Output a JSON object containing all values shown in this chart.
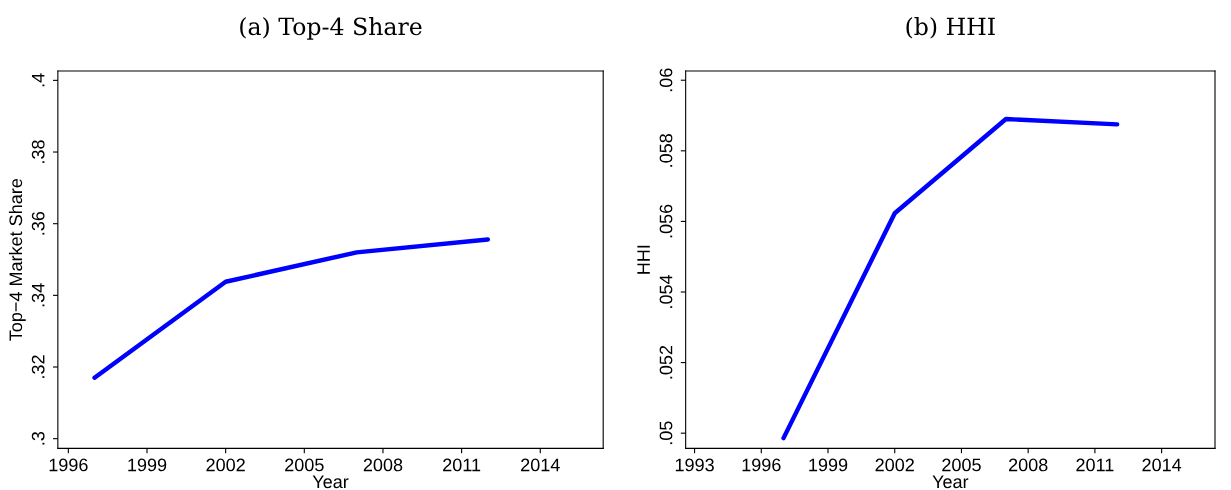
{
  "chart_data": [
    {
      "type": "line",
      "title": "(a) Top-4 Share",
      "xlabel": "Year",
      "ylabel": "Top−4 Market Share",
      "x": [
        1997,
        2002,
        2007,
        2012
      ],
      "series": [
        {
          "color": "#0000ff",
          "values": [
            0.317,
            0.3438,
            0.352,
            0.3556
          ]
        }
      ],
      "xlim": [
        1995.6,
        2016.4
      ],
      "xticks": [
        1996,
        1999,
        2002,
        2005,
        2008,
        2011,
        2014
      ],
      "ylim": [
        0.2973,
        0.4026
      ],
      "yticks": [
        {
          "value": 0.3,
          "label": ".3"
        },
        {
          "value": 0.32,
          "label": ".32"
        },
        {
          "value": 0.34,
          "label": ".34"
        },
        {
          "value": 0.36,
          "label": ".36"
        },
        {
          "value": 0.38,
          "label": ".38"
        },
        {
          "value": 0.4,
          "label": ".4"
        }
      ],
      "grid": false,
      "legend": false
    },
    {
      "type": "line",
      "title": "(b) HHI",
      "xlabel": "Year",
      "ylabel": "HHI",
      "x": [
        1997,
        2002,
        2007,
        2012
      ],
      "series": [
        {
          "color": "#0000ff",
          "values": [
            0.04986,
            0.05623,
            0.0589,
            0.05875
          ]
        }
      ],
      "xlim": [
        1992.6,
        2016.4
      ],
      "xticks": [
        1993,
        1996,
        1999,
        2002,
        2005,
        2008,
        2011,
        2014
      ],
      "ylim": [
        0.04957,
        0.06026
      ],
      "yticks": [
        {
          "value": 0.05,
          "label": ".05"
        },
        {
          "value": 0.052,
          "label": ".052"
        },
        {
          "value": 0.054,
          "label": ".054"
        },
        {
          "value": 0.056,
          "label": ".056"
        },
        {
          "value": 0.058,
          "label": ".058"
        },
        {
          "value": 0.06,
          "label": ".06"
        }
      ],
      "grid": false,
      "legend": false
    }
  ]
}
